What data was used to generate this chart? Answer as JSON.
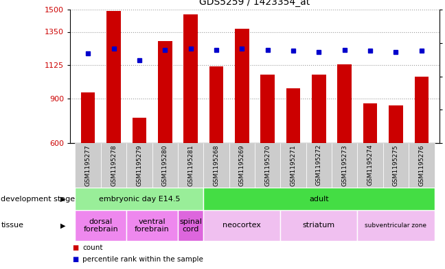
{
  "title": "GDS5259 / 1423354_at",
  "samples": [
    "GSM1195277",
    "GSM1195278",
    "GSM1195279",
    "GSM1195280",
    "GSM1195281",
    "GSM1195268",
    "GSM1195269",
    "GSM1195270",
    "GSM1195271",
    "GSM1195272",
    "GSM1195273",
    "GSM1195274",
    "GSM1195275",
    "GSM1195276"
  ],
  "counts": [
    940,
    1490,
    770,
    1290,
    1470,
    1115,
    1370,
    1060,
    970,
    1060,
    1130,
    870,
    855,
    1050
  ],
  "percentile_ranks": [
    67,
    71,
    62,
    70,
    71,
    70,
    71,
    70,
    69,
    68,
    70,
    69,
    68,
    69
  ],
  "ymin": 600,
  "ymax": 1500,
  "yticks": [
    600,
    900,
    1125,
    1350,
    1500
  ],
  "right_yticks": [
    0,
    25,
    50,
    75,
    100
  ],
  "bar_color": "#cc0000",
  "dot_color": "#0000cc",
  "background_color": "#ffffff",
  "grid_color": "#999999",
  "dev_stage_groups": [
    {
      "label": "embryonic day E14.5",
      "start": 0,
      "end": 4,
      "color": "#99ee99"
    },
    {
      "label": "adult",
      "start": 5,
      "end": 13,
      "color": "#44dd44"
    }
  ],
  "tissue_groups": [
    {
      "label": "dorsal\nforebrain",
      "start": 0,
      "end": 1,
      "color": "#ee88ee"
    },
    {
      "label": "ventral\nforebrain",
      "start": 2,
      "end": 3,
      "color": "#ee88ee"
    },
    {
      "label": "spinal\ncord",
      "start": 4,
      "end": 4,
      "color": "#dd66dd"
    },
    {
      "label": "neocortex",
      "start": 5,
      "end": 7,
      "color": "#f0c0f0"
    },
    {
      "label": "striatum",
      "start": 8,
      "end": 10,
      "color": "#f0c0f0"
    },
    {
      "label": "subventricular zone",
      "start": 11,
      "end": 13,
      "color": "#f0c0f0"
    }
  ]
}
